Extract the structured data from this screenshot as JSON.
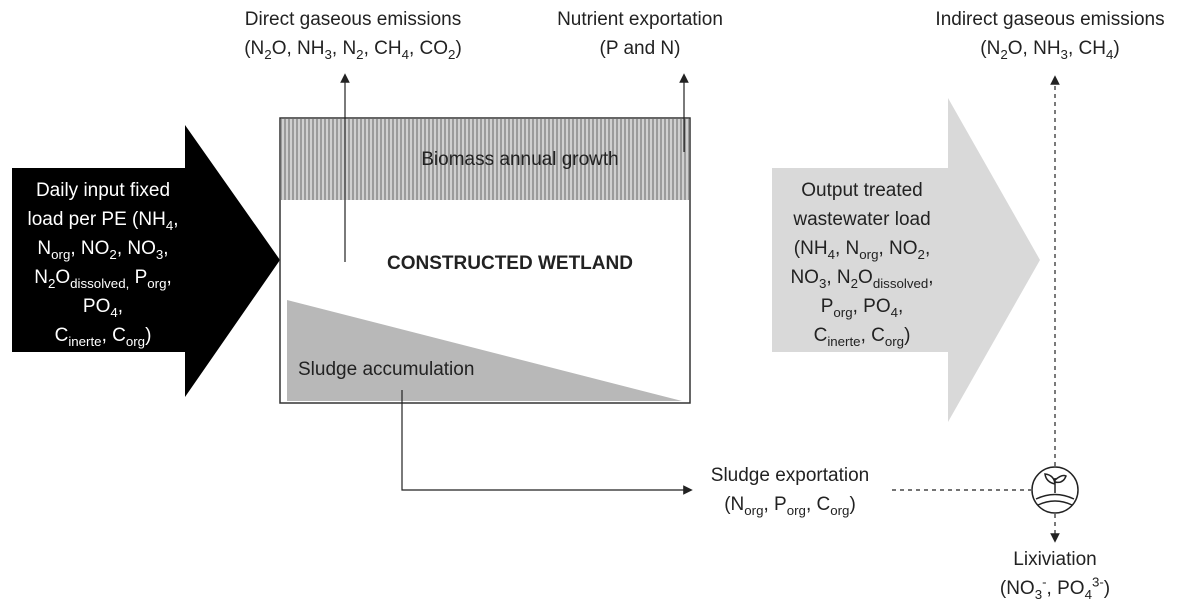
{
  "nodes": {
    "direct_emissions": {
      "lines": [
        [
          "Direct gaseous emissions"
        ],
        [
          "(N",
          {
            "sub": "2"
          },
          "O, NH",
          {
            "sub": "3"
          },
          ", N",
          {
            "sub": "2"
          },
          ", CH",
          {
            "sub": "4"
          },
          ", CO",
          {
            "sub": "2"
          },
          ")"
        ]
      ]
    },
    "nutrient_exportation": {
      "lines": [
        [
          "Nutrient exportation"
        ],
        [
          "(P and N)"
        ]
      ]
    },
    "indirect_emissions": {
      "lines": [
        [
          "Indirect gaseous emissions"
        ],
        [
          "(N",
          {
            "sub": "2"
          },
          "O, NH",
          {
            "sub": "3"
          },
          ", CH",
          {
            "sub": "4"
          },
          ")"
        ]
      ]
    },
    "input": {
      "lines": [
        [
          "Daily input fixed"
        ],
        [
          "load per PE (NH",
          {
            "sub": "4"
          },
          ","
        ],
        [
          "N",
          {
            "sub": "org"
          },
          ", NO",
          {
            "sub": "2"
          },
          ", NO",
          {
            "sub": "3"
          },
          ","
        ],
        [
          "N",
          {
            "sub": "2"
          },
          "O",
          {
            "sub": "dissolved,"
          },
          " P",
          {
            "sub": "org"
          },
          ","
        ],
        [
          "PO",
          {
            "sub": "4"
          },
          ","
        ],
        [
          "C",
          {
            "sub": "inerte"
          },
          ", C",
          {
            "sub": "org"
          },
          ")"
        ]
      ]
    },
    "biomass": {
      "lines": [
        [
          "Biomass annual growth"
        ]
      ]
    },
    "wetland": {
      "lines": [
        [
          "CONSTRUCTED WETLAND"
        ]
      ]
    },
    "sludge_accumulation": {
      "lines": [
        [
          "Sludge accumulation"
        ]
      ]
    },
    "output": {
      "lines": [
        [
          "Output treated"
        ],
        [
          "wastewater load"
        ],
        [
          "(NH",
          {
            "sub": "4"
          },
          ", N",
          {
            "sub": "org"
          },
          ", NO",
          {
            "sub": "2"
          },
          ","
        ],
        [
          "NO",
          {
            "sub": "3"
          },
          ", N",
          {
            "sub": "2"
          },
          "O",
          {
            "sub": "dissolved"
          },
          ","
        ],
        [
          "P",
          {
            "sub": "org"
          },
          ", PO",
          {
            "sub": "4"
          },
          ","
        ],
        [
          "C",
          {
            "sub": "inerte"
          },
          ", C",
          {
            "sub": "org"
          },
          ")"
        ]
      ]
    },
    "sludge_exportation": {
      "lines": [
        [
          "Sludge exportation"
        ],
        [
          "(N",
          {
            "sub": "org"
          },
          ", P",
          {
            "sub": "org"
          },
          ", C",
          {
            "sub": "org"
          },
          ")"
        ]
      ]
    },
    "lixiviation": {
      "lines": [
        [
          "Lixiviation"
        ],
        [
          "(NO",
          {
            "sub": "3"
          },
          {
            "sup": "-"
          },
          ", PO",
          {
            "sub": "4"
          },
          {
            "sup": "3-"
          },
          ")"
        ]
      ]
    }
  }
}
